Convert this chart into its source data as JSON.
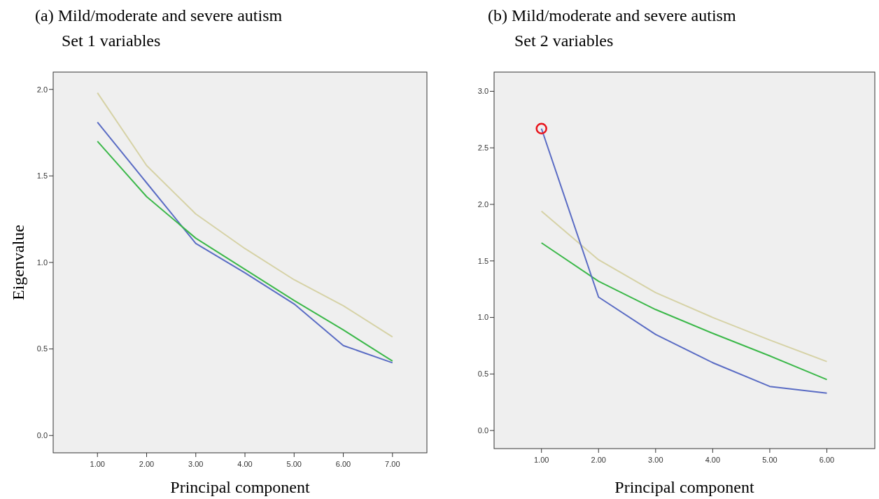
{
  "chart_data": [
    {
      "type": "line",
      "title": "(a) Mild/moderate and severe autism",
      "subtitle": "Set 1 variables",
      "xlabel": "Principal component",
      "ylabel": "Eigenvalue",
      "x": [
        1,
        2,
        3,
        4,
        5,
        6,
        7
      ],
      "xlim": [
        0.1,
        7.7
      ],
      "ylim": [
        -0.1,
        2.1
      ],
      "xticks": [
        {
          "value": 1,
          "label": "1.00"
        },
        {
          "value": 2,
          "label": "2.00"
        },
        {
          "value": 3,
          "label": "3.00"
        },
        {
          "value": 4,
          "label": "4.00"
        },
        {
          "value": 5,
          "label": "5.00"
        },
        {
          "value": 6,
          "label": "6.00"
        },
        {
          "value": 7,
          "label": "7.00"
        }
      ],
      "yticks": [
        {
          "value": 0,
          "label": "0.0"
        },
        {
          "value": 0.5,
          "label": "0.5"
        },
        {
          "value": 1,
          "label": "1.0"
        },
        {
          "value": 1.5,
          "label": "1.5"
        },
        {
          "value": 2,
          "label": "2.0"
        }
      ],
      "grid": false,
      "series": [
        {
          "color": "#d6d2a6",
          "values": [
            1.98,
            1.56,
            1.28,
            1.08,
            0.9,
            0.75,
            0.57
          ]
        },
        {
          "color": "#5a6cc4",
          "values": [
            1.81,
            1.46,
            1.11,
            0.94,
            0.76,
            0.52,
            0.42
          ]
        },
        {
          "color": "#3cb84a",
          "values": [
            1.7,
            1.38,
            1.14,
            0.96,
            0.78,
            0.61,
            0.43
          ]
        }
      ]
    },
    {
      "type": "line",
      "title": "(b) Mild/moderate and severe autism",
      "subtitle": "Set 2 variables",
      "xlabel": "Principal component",
      "x": [
        1,
        2,
        3,
        4,
        5,
        6
      ],
      "xlim": [
        0.17,
        6.84
      ],
      "ylim": [
        -0.16,
        3.17
      ],
      "xticks": [
        {
          "value": 1,
          "label": "1.00"
        },
        {
          "value": 2,
          "label": "2.00"
        },
        {
          "value": 3,
          "label": "3.00"
        },
        {
          "value": 4,
          "label": "4.00"
        },
        {
          "value": 5,
          "label": "5.00"
        },
        {
          "value": 6,
          "label": "6.00"
        }
      ],
      "yticks": [
        {
          "value": 0,
          "label": "0.0"
        },
        {
          "value": 0.5,
          "label": "0.5"
        },
        {
          "value": 1,
          "label": "1.0"
        },
        {
          "value": 1.5,
          "label": "1.5"
        },
        {
          "value": 2,
          "label": "2.0"
        },
        {
          "value": 2.5,
          "label": "2.5"
        },
        {
          "value": 3,
          "label": "3.0"
        }
      ],
      "grid": false,
      "series": [
        {
          "color": "#d6d2a6",
          "values": [
            1.94,
            1.51,
            1.22,
            1.0,
            0.8,
            0.61
          ]
        },
        {
          "color": "#3cb84a",
          "values": [
            1.66,
            1.32,
            1.07,
            0.86,
            0.66,
            0.45
          ]
        },
        {
          "color": "#5a6cc4",
          "values": [
            2.67,
            1.18,
            0.85,
            0.6,
            0.39,
            0.33
          ]
        }
      ]
    }
  ]
}
